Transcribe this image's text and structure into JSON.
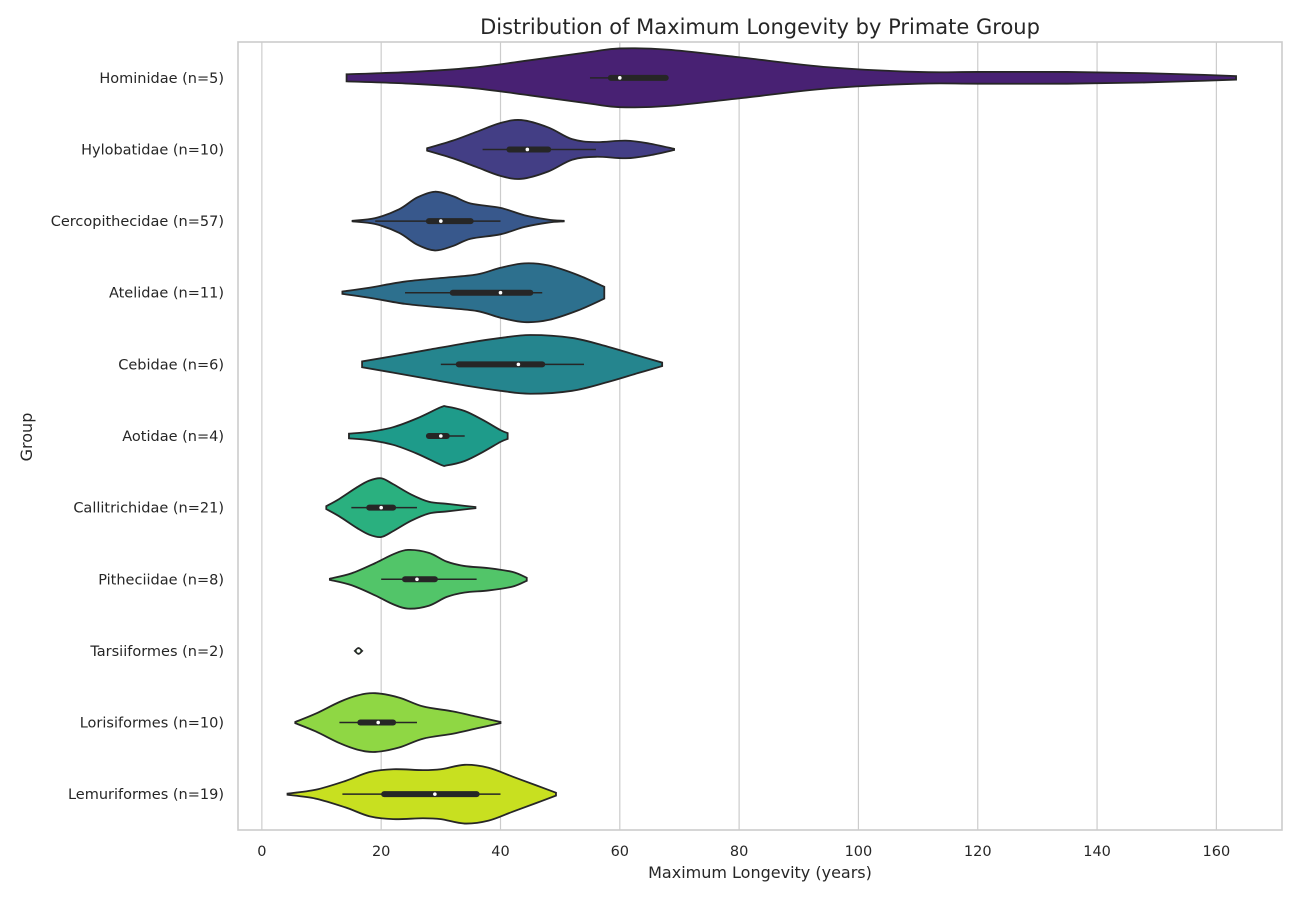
{
  "chart_data": {
    "type": "violin",
    "title": "Distribution of Maximum Longevity by Primate Group",
    "xlabel": "Maximum Longevity (years)",
    "ylabel": "Group",
    "xlim": [
      -4,
      171
    ],
    "xticks": [
      0,
      20,
      40,
      60,
      80,
      100,
      120,
      140,
      160
    ],
    "grid": "vertical",
    "orientation": "horizontal",
    "groups": [
      {
        "label": "Hominidae (n=5)",
        "color": "#482173",
        "min": 14.2,
        "max": 163.3,
        "whisker": [
          55,
          68
        ],
        "iqr": [
          58.5,
          67.7
        ],
        "median": 60,
        "density": [
          [
            14.2,
            0.12
          ],
          [
            25,
            0.2
          ],
          [
            35,
            0.34
          ],
          [
            45,
            0.6
          ],
          [
            55,
            0.88
          ],
          [
            60,
            1.0
          ],
          [
            68,
            0.96
          ],
          [
            80,
            0.7
          ],
          [
            95,
            0.36
          ],
          [
            110,
            0.2
          ],
          [
            120,
            0.2
          ],
          [
            135,
            0.2
          ],
          [
            148,
            0.16
          ],
          [
            158,
            0.1
          ],
          [
            163.3,
            0.06
          ]
        ]
      },
      {
        "label": "Hylobatidae (n=10)",
        "color": "#433e85",
        "min": 27.7,
        "max": 69.1,
        "whisker": [
          37,
          56
        ],
        "iqr": [
          41.5,
          48
        ],
        "median": 44.5,
        "density": [
          [
            27.7,
            0.04
          ],
          [
            32,
            0.3
          ],
          [
            36,
            0.6
          ],
          [
            40,
            0.9
          ],
          [
            43.5,
            1.0
          ],
          [
            48,
            0.75
          ],
          [
            52,
            0.35
          ],
          [
            56,
            0.25
          ],
          [
            61,
            0.3
          ],
          [
            65,
            0.2
          ],
          [
            69.1,
            0.02
          ]
        ]
      },
      {
        "label": "Cercopithecidae (n=57)",
        "color": "#38588c",
        "min": 15.2,
        "max": 50.6,
        "whisker": [
          19,
          40
        ],
        "iqr": [
          28,
          35
        ],
        "median": 30,
        "density": [
          [
            15.2,
            0.01
          ],
          [
            19,
            0.1
          ],
          [
            23,
            0.4
          ],
          [
            26,
            0.8
          ],
          [
            29,
            1.0
          ],
          [
            32,
            0.85
          ],
          [
            35,
            0.6
          ],
          [
            40,
            0.45
          ],
          [
            44,
            0.2
          ],
          [
            48,
            0.05
          ],
          [
            50.6,
            0.01
          ]
        ]
      },
      {
        "label": "Atelidae (n=11)",
        "color": "#2d708e",
        "min": 13.5,
        "max": 57.4,
        "whisker": [
          24,
          47
        ],
        "iqr": [
          32,
          45
        ],
        "median": 40,
        "density": [
          [
            13.5,
            0.04
          ],
          [
            18,
            0.17
          ],
          [
            24,
            0.38
          ],
          [
            30,
            0.5
          ],
          [
            36,
            0.62
          ],
          [
            40,
            0.85
          ],
          [
            44,
            1.0
          ],
          [
            48,
            0.93
          ],
          [
            53,
            0.6
          ],
          [
            57.4,
            0.2
          ]
        ]
      },
      {
        "label": "Cebidae (n=6)",
        "color": "#25858e",
        "min": 16.8,
        "max": 67.1,
        "whisker": [
          30,
          54
        ],
        "iqr": [
          33,
          47
        ],
        "median": 43,
        "density": [
          [
            16.8,
            0.1
          ],
          [
            22,
            0.28
          ],
          [
            28,
            0.5
          ],
          [
            35,
            0.75
          ],
          [
            40,
            0.9
          ],
          [
            45,
            1.0
          ],
          [
            52,
            0.9
          ],
          [
            58,
            0.6
          ],
          [
            63,
            0.3
          ],
          [
            67.1,
            0.06
          ]
        ]
      },
      {
        "label": "Aotidae (n=4)",
        "color": "#1e9b8a",
        "min": 14.6,
        "max": 41.2,
        "whisker": [
          28,
          34
        ],
        "iqr": [
          28,
          31
        ],
        "median": 30,
        "density": [
          [
            14.6,
            0.08
          ],
          [
            18,
            0.14
          ],
          [
            22,
            0.3
          ],
          [
            26,
            0.6
          ],
          [
            30,
            0.98
          ],
          [
            31,
            1.0
          ],
          [
            34,
            0.85
          ],
          [
            37,
            0.55
          ],
          [
            40,
            0.2
          ],
          [
            41.2,
            0.1
          ]
        ]
      },
      {
        "label": "Callitrichidae (n=21)",
        "color": "#2ab07f",
        "min": 10.8,
        "max": 35.8,
        "whisker": [
          15,
          26
        ],
        "iqr": [
          18,
          22
        ],
        "median": 20,
        "density": [
          [
            10.8,
            0.05
          ],
          [
            13,
            0.3
          ],
          [
            16,
            0.7
          ],
          [
            18,
            0.92
          ],
          [
            20,
            1.0
          ],
          [
            22,
            0.8
          ],
          [
            25,
            0.45
          ],
          [
            28,
            0.2
          ],
          [
            31,
            0.13
          ],
          [
            34,
            0.06
          ],
          [
            35.8,
            0.02
          ]
        ]
      },
      {
        "label": "Pitheciidae (n=8)",
        "color": "#52c569",
        "min": 11.4,
        "max": 44.4,
        "whisker": [
          20,
          36
        ],
        "iqr": [
          24,
          29
        ],
        "median": 26,
        "density": [
          [
            11.4,
            0.02
          ],
          [
            15,
            0.2
          ],
          [
            19,
            0.55
          ],
          [
            22,
            0.85
          ],
          [
            24.5,
            1.0
          ],
          [
            28,
            0.9
          ],
          [
            31,
            0.6
          ],
          [
            34,
            0.45
          ],
          [
            38,
            0.38
          ],
          [
            42,
            0.25
          ],
          [
            44.4,
            0.05
          ]
        ]
      },
      {
        "label": "Tarsiiformes (n=2)",
        "color": "#5ec962",
        "min": 16.2,
        "max": 16.2,
        "whisker": [
          16.2,
          16.2
        ],
        "iqr": [
          16.2,
          16.2
        ],
        "median": 16.2,
        "density": [
          [
            15.6,
            0.0
          ],
          [
            16.2,
            0.1
          ],
          [
            16.8,
            0.0
          ]
        ]
      },
      {
        "label": "Lorisiformes (n=10)",
        "color": "#8fd744",
        "min": 5.6,
        "max": 40,
        "whisker": [
          13,
          26
        ],
        "iqr": [
          16.5,
          22
        ],
        "median": 19.5,
        "density": [
          [
            5.6,
            0.02
          ],
          [
            9,
            0.3
          ],
          [
            13,
            0.7
          ],
          [
            16,
            0.92
          ],
          [
            19,
            1.0
          ],
          [
            23,
            0.85
          ],
          [
            27,
            0.55
          ],
          [
            32,
            0.38
          ],
          [
            36,
            0.2
          ],
          [
            40,
            0.02
          ]
        ]
      },
      {
        "label": "Lemuriformes (n=19)",
        "color": "#c8e020",
        "min": 4.3,
        "max": 49.3,
        "whisker": [
          13.5,
          40
        ],
        "iqr": [
          20.5,
          36
        ],
        "median": 29,
        "density": [
          [
            4.3,
            0.02
          ],
          [
            9,
            0.15
          ],
          [
            14,
            0.45
          ],
          [
            18,
            0.75
          ],
          [
            22,
            0.85
          ],
          [
            27,
            0.82
          ],
          [
            30,
            0.85
          ],
          [
            34,
            1.0
          ],
          [
            38,
            0.9
          ],
          [
            42,
            0.6
          ],
          [
            46,
            0.3
          ],
          [
            49.3,
            0.05
          ]
        ]
      }
    ]
  }
}
